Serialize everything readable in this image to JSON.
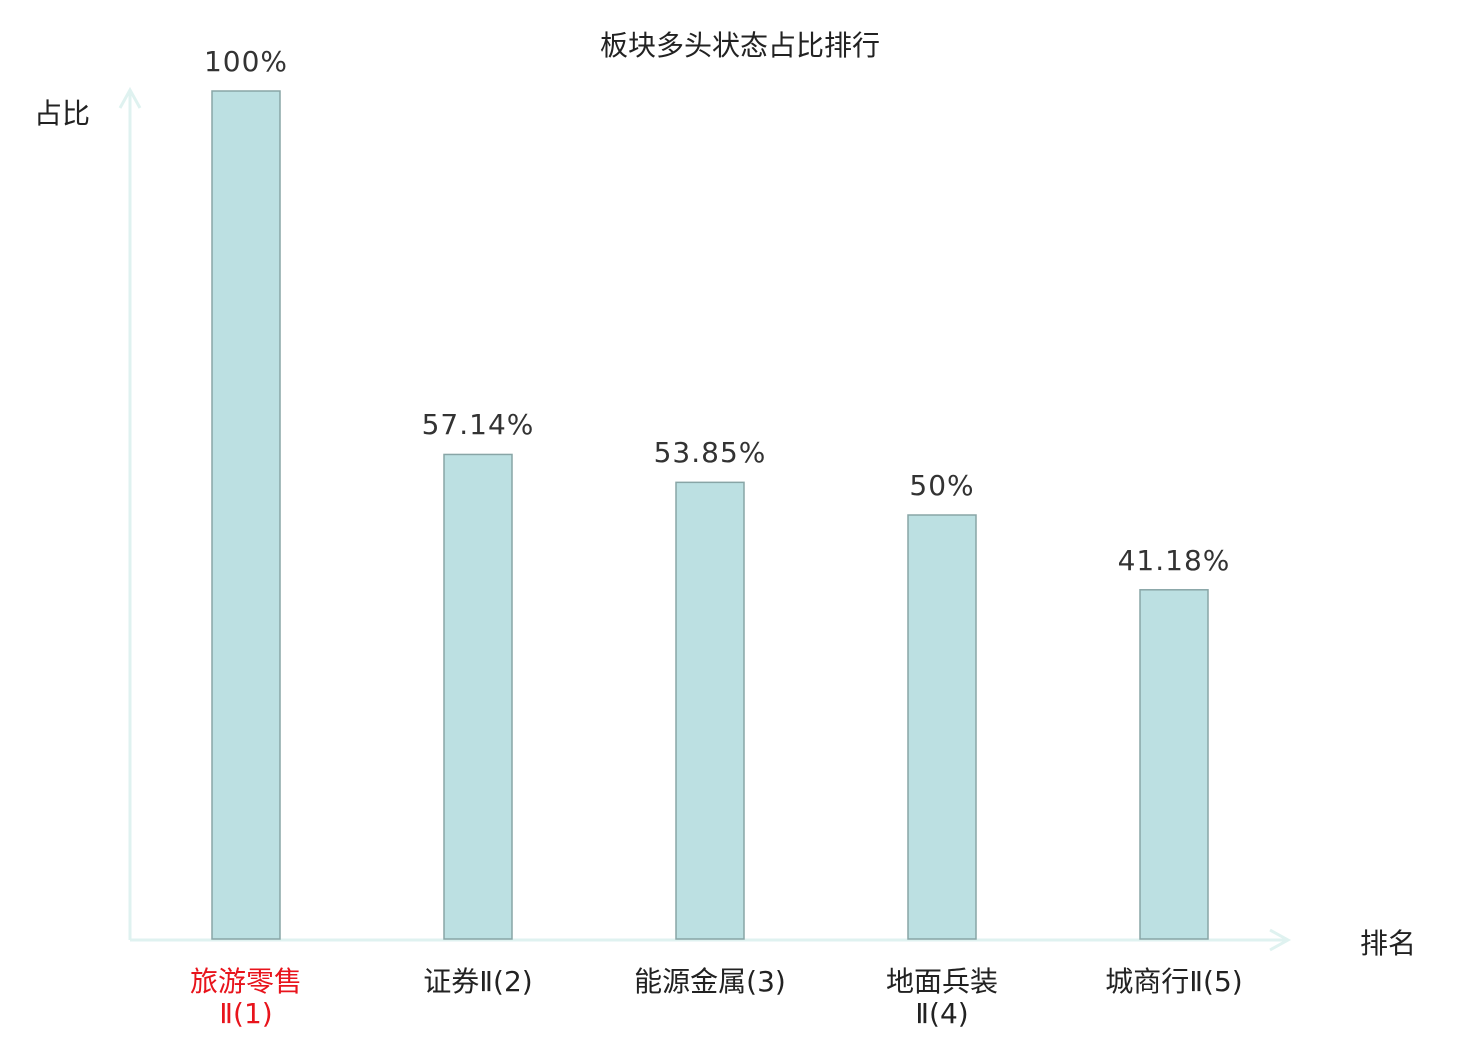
{
  "chart_data": {
    "type": "bar",
    "title": "板块多头状态占比排行",
    "xlabel": "排名",
    "ylabel": "占比",
    "categories": [
      "旅游零售Ⅱ(1)",
      "证券Ⅱ(2)",
      "能源金属(3)",
      "地面兵装Ⅱ(4)",
      "城商行Ⅱ(5)"
    ],
    "values": [
      100,
      57.14,
      53.85,
      50,
      41.18
    ],
    "value_labels": [
      "100%",
      "57.14%",
      "53.85%",
      "50%",
      "41.18%"
    ],
    "ylim": [
      0,
      100
    ],
    "grid": false,
    "highlight_category_index": 0,
    "colors": {
      "bar_fill": "#bce0e2",
      "bar_stroke": "#88a5a6",
      "axis": "#dff2f0",
      "highlight_text": "#e8141c",
      "text": "#222222"
    }
  }
}
